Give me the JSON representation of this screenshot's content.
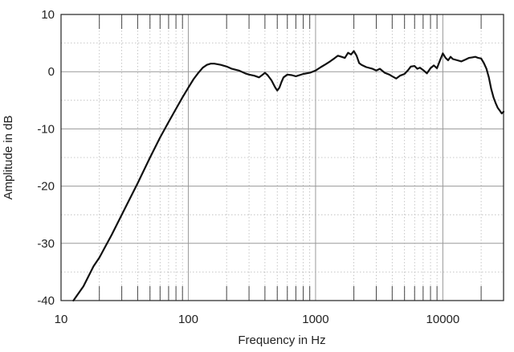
{
  "chart_data": {
    "type": "line",
    "title": "",
    "xlabel": "Frequency in Hz",
    "ylabel": "Amplitude in dB",
    "x_scale": "log",
    "xlim": [
      10,
      30000
    ],
    "ylim": [
      -40,
      10
    ],
    "grid": true,
    "legend": "none",
    "x_ticks": [
      10,
      100,
      1000,
      10000
    ],
    "x_tick_labels": [
      "10",
      "100",
      "1000",
      "10000"
    ],
    "y_ticks": [
      10,
      0,
      -10,
      -20,
      -30,
      -40
    ],
    "y_tick_labels": [
      "10",
      "0",
      "-10",
      "-20",
      "-30",
      "-40"
    ],
    "colors": {
      "line": "#111111",
      "major_grid": "#9a9a9a",
      "minor_grid": "#b8b8b8",
      "frame": "#222222"
    },
    "series": [
      {
        "x": [
          12.5,
          15,
          18,
          20,
          25,
          30,
          40,
          50,
          60,
          70,
          80,
          90,
          100,
          110,
          120,
          130,
          140,
          150,
          160,
          170,
          180,
          200,
          220,
          250,
          280,
          300,
          330,
          360,
          380,
          400,
          420,
          450,
          480,
          500,
          520,
          540,
          560,
          600,
          650,
          700,
          800,
          900,
          1000,
          1100,
          1200,
          1300,
          1400,
          1500,
          1600,
          1700,
          1800,
          1900,
          2000,
          2100,
          2200,
          2300,
          2500,
          2800,
          3000,
          3200,
          3500,
          3800,
          4000,
          4300,
          4600,
          5000,
          5300,
          5600,
          6000,
          6300,
          6600,
          7000,
          7500,
          8000,
          8500,
          9000,
          9500,
          10000,
          10500,
          11000,
          11500,
          12000,
          13000,
          14000,
          15000,
          16000,
          17000,
          18000,
          19000,
          20000,
          21000,
          22000,
          23000,
          24000,
          25000,
          26000,
          27000,
          28000,
          29000,
          30000
        ],
        "y": [
          -40,
          -37.5,
          -34,
          -32.5,
          -28.5,
          -25,
          -19.5,
          -15,
          -11.5,
          -8.8,
          -6.5,
          -4.5,
          -2.8,
          -1.3,
          -0.2,
          0.7,
          1.2,
          1.4,
          1.4,
          1.3,
          1.2,
          0.9,
          0.5,
          0.2,
          -0.3,
          -0.5,
          -0.7,
          -1.0,
          -0.6,
          -0.2,
          -0.6,
          -1.5,
          -2.7,
          -3.3,
          -2.8,
          -1.8,
          -1.0,
          -0.5,
          -0.6,
          -0.8,
          -0.4,
          -0.2,
          0.2,
          0.8,
          1.3,
          1.8,
          2.3,
          2.8,
          2.6,
          2.4,
          3.3,
          3.0,
          3.6,
          2.8,
          1.5,
          1.2,
          0.8,
          0.5,
          0.2,
          0.5,
          -0.2,
          -0.5,
          -0.8,
          -1.2,
          -0.7,
          -0.4,
          0.2,
          0.9,
          1.0,
          0.5,
          0.7,
          0.3,
          -0.3,
          0.6,
          1.1,
          0.6,
          2.0,
          3.2,
          2.4,
          2.0,
          2.6,
          2.2,
          2.0,
          1.8,
          2.1,
          2.4,
          2.5,
          2.6,
          2.4,
          2.3,
          1.5,
          0.5,
          -1.0,
          -3.0,
          -4.5,
          -5.5,
          -6.3,
          -6.8,
          -7.3,
          -7.0
        ]
      }
    ]
  }
}
